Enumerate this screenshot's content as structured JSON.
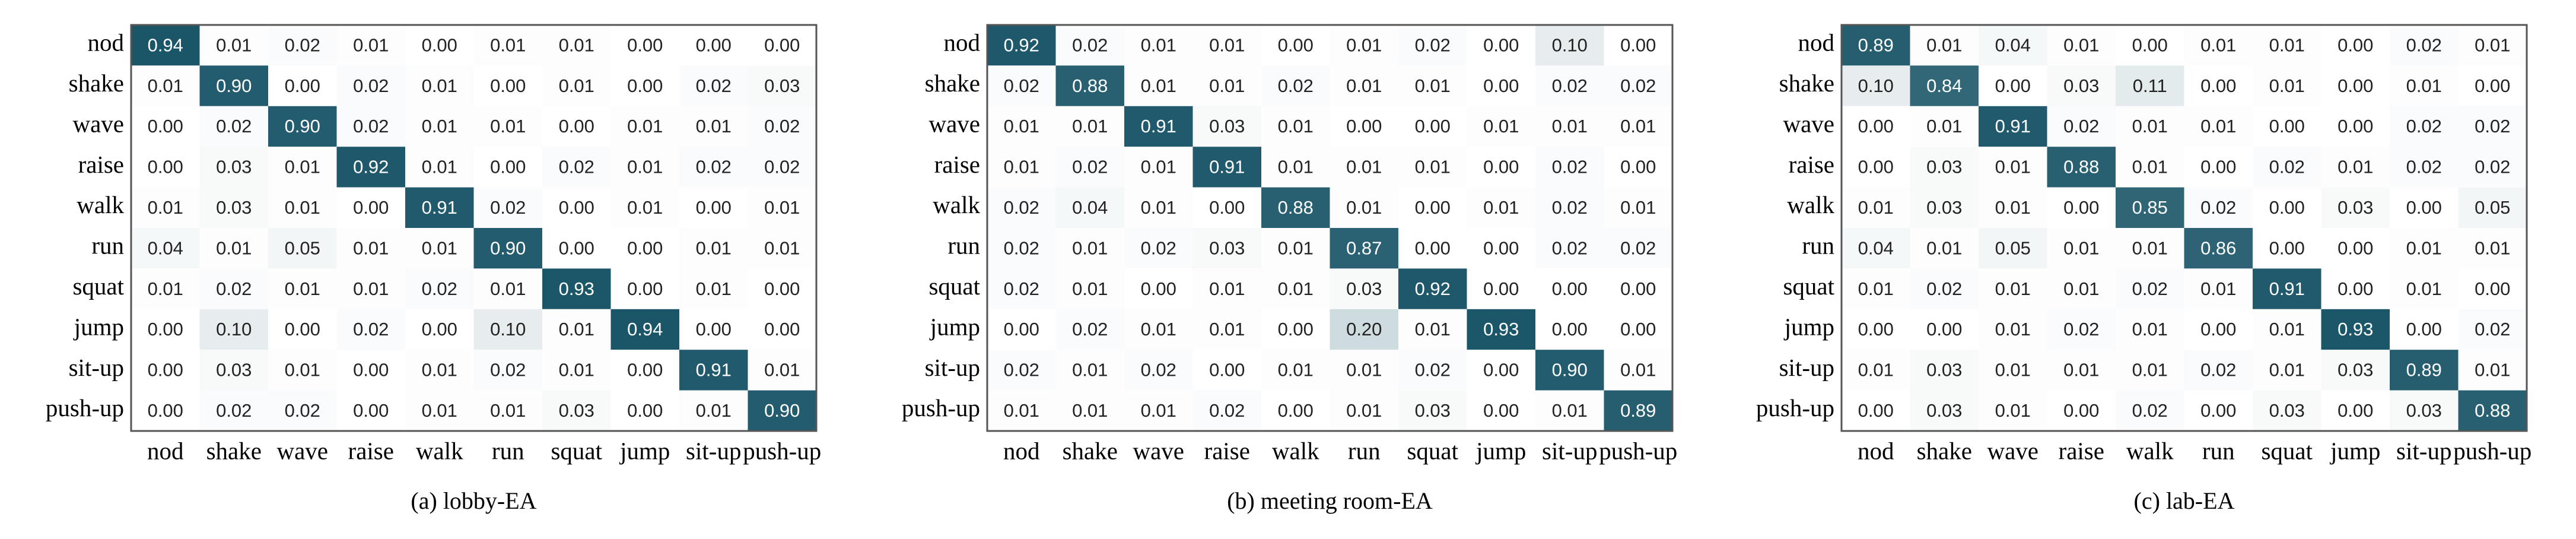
{
  "chart_data": [
    {
      "type": "heatmap",
      "caption": "(a) lobby-EA",
      "colors": [
        "#ffffff",
        "#0b4a5e"
      ],
      "x_categories": [
        "nod",
        "shake",
        "wave",
        "raise",
        "walk",
        "run",
        "squat",
        "jump",
        "sit-up",
        "push-up"
      ],
      "y_categories": [
        "nod",
        "shake",
        "wave",
        "raise",
        "walk",
        "run",
        "squat",
        "jump",
        "sit-up",
        "push-up"
      ],
      "values": [
        [
          0.94,
          0.01,
          0.02,
          0.01,
          0,
          0.01,
          0.01,
          0,
          0,
          0
        ],
        [
          0.01,
          0.9,
          0,
          0.02,
          0.01,
          0,
          0.01,
          0,
          0.02,
          0.03
        ],
        [
          0,
          0.02,
          0.9,
          0.02,
          0.01,
          0.01,
          0,
          0.01,
          0.01,
          0.02
        ],
        [
          0,
          0.03,
          0.01,
          0.92,
          0.01,
          0,
          0.02,
          0.01,
          0.02,
          0.02
        ],
        [
          0.01,
          0.03,
          0.01,
          0,
          0.91,
          0.02,
          0,
          0.01,
          0,
          0.01
        ],
        [
          0.04,
          0.01,
          0.05,
          0.01,
          0.01,
          0.9,
          0,
          0,
          0.01,
          0.01
        ],
        [
          0.01,
          0.02,
          0.01,
          0.01,
          0.02,
          0.01,
          0.93,
          0,
          0.01,
          0
        ],
        [
          0,
          0.1,
          0,
          0.02,
          0,
          0.1,
          0.01,
          0.94,
          0,
          0
        ],
        [
          0,
          0.03,
          0.01,
          0,
          0.01,
          0.02,
          0.01,
          0,
          0.91,
          0.01
        ],
        [
          0,
          0.02,
          0.02,
          0,
          0.01,
          0.01,
          0.03,
          0,
          0.01,
          0.9
        ]
      ],
      "value_labels": [
        [
          "0.94",
          "0.01",
          "0.02",
          "0.01",
          "0.00",
          "0.01",
          "0.01",
          "0.00",
          "0.00",
          "0.00"
        ],
        [
          "0.01",
          "0.90",
          "0.00",
          "0.02",
          "0.01",
          "0.00",
          "0.01",
          "0.00",
          "0.02",
          "0.03"
        ],
        [
          "0.00",
          "0.02",
          "0.90",
          "0.02",
          "0.01",
          "0.01",
          "0.00",
          "0.01",
          "0.01",
          "0.02"
        ],
        [
          "0.00",
          "0.03",
          "0.01",
          "0.92",
          "0.01",
          "0.00",
          "0.02",
          "0.01",
          "0.02",
          "0.02"
        ],
        [
          "0.01",
          "0.03",
          "0.01",
          "0.00",
          "0.91",
          "0.02",
          "0.00",
          "0.01",
          "0.00",
          "0.01"
        ],
        [
          "0.04",
          "0.01",
          "0.05",
          "0.01",
          "0.01",
          "0.90",
          "0.00",
          "0.00",
          "0.01",
          "0.01"
        ],
        [
          "0.01",
          "0.02",
          "0.01",
          "0.01",
          "0.02",
          "0.01",
          "0.93",
          "0.00",
          "0.01",
          "0.00"
        ],
        [
          "0.00",
          "0.10",
          "0.00",
          "0.02",
          "0.00",
          "0.10",
          "0.01",
          "0.94",
          "0.00",
          "0.00"
        ],
        [
          "0.00",
          "0.03",
          "0.01",
          "0.00",
          "0.01",
          "0.02",
          "0.01",
          "0.00",
          "0.91",
          "0.01"
        ],
        [
          "0.00",
          "0.02",
          "0.02",
          "0.00",
          "0.01",
          "0.01",
          "0.03",
          "0.00",
          "0.01",
          "0.90"
        ]
      ]
    },
    {
      "type": "heatmap",
      "caption": "(b) meeting room-EA",
      "colors": [
        "#ffffff",
        "#0b4a5e"
      ],
      "x_categories": [
        "nod",
        "shake",
        "wave",
        "raise",
        "walk",
        "run",
        "squat",
        "jump",
        "sit-up",
        "push-up"
      ],
      "y_categories": [
        "nod",
        "shake",
        "wave",
        "raise",
        "walk",
        "run",
        "squat",
        "jump",
        "sit-up",
        "push-up"
      ],
      "values": [
        [
          0.92,
          0.02,
          0.01,
          0.01,
          0,
          0.01,
          0.02,
          0,
          0.1,
          0
        ],
        [
          0.02,
          0.88,
          0.01,
          0.01,
          0.02,
          0.01,
          0.01,
          0,
          0.02,
          0.02
        ],
        [
          0.01,
          0.01,
          0.91,
          0.03,
          0.01,
          0,
          0,
          0.01,
          0.01,
          0.01
        ],
        [
          0.01,
          0.02,
          0.01,
          0.91,
          0.01,
          0.01,
          0.01,
          0,
          0.02,
          0
        ],
        [
          0.02,
          0.04,
          0.01,
          0,
          0.88,
          0.01,
          0,
          0.01,
          0.02,
          0.01
        ],
        [
          0.02,
          0.01,
          0.02,
          0.03,
          0.01,
          0.87,
          0,
          0,
          0.02,
          0.02
        ],
        [
          0.02,
          0.01,
          0,
          0.01,
          0.01,
          0.03,
          0.92,
          0,
          0,
          0
        ],
        [
          0,
          0.02,
          0.01,
          0.01,
          0,
          0.2,
          0.01,
          0.93,
          0,
          0
        ],
        [
          0.02,
          0.01,
          0.02,
          0,
          0.01,
          0.01,
          0.02,
          0,
          0.9,
          0.01
        ],
        [
          0.01,
          0.01,
          0.01,
          0.02,
          0,
          0.01,
          0.03,
          0,
          0.01,
          0.89
        ]
      ],
      "value_labels": [
        [
          "0.92",
          "0.02",
          "0.01",
          "0.01",
          "0.00",
          "0.01",
          "0.02",
          "0.00",
          "0.10",
          "0.00"
        ],
        [
          "0.02",
          "0.88",
          "0.01",
          "0.01",
          "0.02",
          "0.01",
          "0.01",
          "0.00",
          "0.02",
          "0.02"
        ],
        [
          "0.01",
          "0.01",
          "0.91",
          "0.03",
          "0.01",
          "0.00",
          "0.00",
          "0.01",
          "0.01",
          "0.01"
        ],
        [
          "0.01",
          "0.02",
          "0.01",
          "0.91",
          "0.01",
          "0.01",
          "0.01",
          "0.00",
          "0.02",
          "0.00"
        ],
        [
          "0.02",
          "0.04",
          "0.01",
          "0.00",
          "0.88",
          "0.01",
          "0.00",
          "0.01",
          "0.02",
          "0.01"
        ],
        [
          "0.02",
          "0.01",
          "0.02",
          "0.03",
          "0.01",
          "0.87",
          "0.00",
          "0.00",
          "0.02",
          "0.02"
        ],
        [
          "0.02",
          "0.01",
          "0.00",
          "0.01",
          "0.01",
          "0.03",
          "0.92",
          "0.00",
          "0.00",
          "0.00"
        ],
        [
          "0.00",
          "0.02",
          "0.01",
          "0.01",
          "0.00",
          "0.20",
          "0.01",
          "0.93",
          "0.00",
          "0.00"
        ],
        [
          "0.02",
          "0.01",
          "0.02",
          "0.00",
          "0.01",
          "0.01",
          "0.02",
          "0.00",
          "0.90",
          "0.01"
        ],
        [
          "0.01",
          "0.01",
          "0.01",
          "0.02",
          "0.00",
          "0.01",
          "0.03",
          "0.00",
          "0.01",
          "0.89"
        ]
      ]
    },
    {
      "type": "heatmap",
      "caption": "(c) lab-EA",
      "colors": [
        "#ffffff",
        "#0b4a5e"
      ],
      "x_categories": [
        "nod",
        "shake",
        "wave",
        "raise",
        "walk",
        "run",
        "squat",
        "jump",
        "sit-up",
        "push-up"
      ],
      "y_categories": [
        "nod",
        "shake",
        "wave",
        "raise",
        "walk",
        "run",
        "squat",
        "jump",
        "sit-up",
        "push-up"
      ],
      "values": [
        [
          0.89,
          0.01,
          0.04,
          0.01,
          0,
          0.01,
          0.01,
          0,
          0.02,
          0.01
        ],
        [
          0.1,
          0.84,
          0,
          0.03,
          0.11,
          0,
          0.01,
          0,
          0.01,
          0
        ],
        [
          0,
          0.01,
          0.91,
          0.02,
          0.01,
          0.01,
          0,
          0,
          0.02,
          0.02
        ],
        [
          0,
          0.03,
          0.01,
          0.88,
          0.01,
          0,
          0.02,
          0.01,
          0.02,
          0.02
        ],
        [
          0.01,
          0.03,
          0.01,
          0,
          0.85,
          0.02,
          0,
          0.03,
          0,
          0.05
        ],
        [
          0.04,
          0.01,
          0.05,
          0.01,
          0.01,
          0.86,
          0,
          0,
          0.01,
          0.01
        ],
        [
          0.01,
          0.02,
          0.01,
          0.01,
          0.02,
          0.01,
          0.91,
          0,
          0.01,
          0
        ],
        [
          0,
          0,
          0.01,
          0.02,
          0.01,
          0,
          0.01,
          0.93,
          0,
          0.02
        ],
        [
          0.01,
          0.03,
          0.01,
          0.01,
          0.01,
          0.02,
          0.01,
          0.03,
          0.89,
          0.01
        ],
        [
          0,
          0.03,
          0.01,
          0,
          0.02,
          0,
          0.03,
          0,
          0.03,
          0.88
        ]
      ],
      "value_labels": [
        [
          "0.89",
          "0.01",
          "0.04",
          "0.01",
          "0.00",
          "0.01",
          "0.01",
          "0.00",
          "0.02",
          "0.01"
        ],
        [
          "0.10",
          "0.84",
          "0.00",
          "0.03",
          "0.11",
          "0.00",
          "0.01",
          "0.00",
          "0.01",
          "0.00"
        ],
        [
          "0.00",
          "0.01",
          "0.91",
          "0.02",
          "0.01",
          "0.01",
          "0.00",
          "0.00",
          "0.02",
          "0.02"
        ],
        [
          "0.00",
          "0.03",
          "0.01",
          "0.88",
          "0.01",
          "0.00",
          "0.02",
          "0.01",
          "0.02",
          "0.02"
        ],
        [
          "0.01",
          "0.03",
          "0.01",
          "0.00",
          "0.85",
          "0.02",
          "0.00",
          "0.03",
          "0.00",
          "0.05"
        ],
        [
          "0.04",
          "0.01",
          "0.05",
          "0.01",
          "0.01",
          "0.86",
          "0.00",
          "0.00",
          "0.01",
          "0.01"
        ],
        [
          "0.01",
          "0.02",
          "0.01",
          "0.01",
          "0.02",
          "0.01",
          "0.91",
          "0.00",
          "0.01",
          "0.00"
        ],
        [
          "0.00",
          "0.00",
          "0.01",
          "0.02",
          "0.01",
          "0.00",
          "0.01",
          "0.93",
          "0.00",
          "0.02"
        ],
        [
          "0.01",
          "0.03",
          "0.01",
          "0.01",
          "0.01",
          "0.02",
          "0.01",
          "0.03",
          "0.89",
          "0.01"
        ],
        [
          "0.00",
          "0.03",
          "0.01",
          "0.00",
          "0.02",
          "0.00",
          "0.03",
          "0.00",
          "0.03",
          "0.88"
        ]
      ]
    }
  ]
}
